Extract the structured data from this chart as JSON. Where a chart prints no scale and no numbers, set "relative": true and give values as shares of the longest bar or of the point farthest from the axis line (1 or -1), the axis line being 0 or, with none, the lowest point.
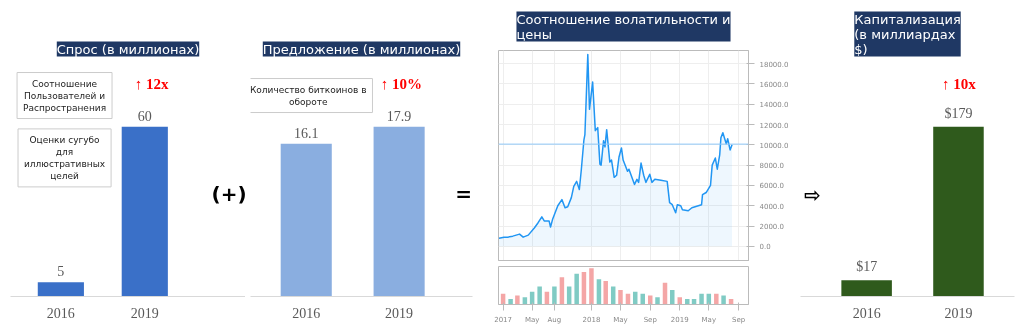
{
  "chart_data": [
    {
      "type": "bar",
      "title": "Спрос (в миллионах)",
      "categories": [
        "2016",
        "2019"
      ],
      "values": [
        5,
        60
      ],
      "color": "#3a70c8",
      "data_labels": true,
      "annotations": [
        "Соотношение Пользователей и Распространения",
        "↑ 12x",
        "Оценки сугубо для иллюстративных целей",
        "(+)"
      ]
    },
    {
      "type": "bar",
      "title": "Предложение (в миллионах)",
      "categories": [
        "2016",
        "2019"
      ],
      "values": [
        16.1,
        17.9
      ],
      "color": "#8aaee0",
      "data_labels": true,
      "annotations": [
        "Количество биткоинов в обороте",
        "↑ 10%",
        "="
      ]
    },
    {
      "type": "area",
      "title": "Соотношение волатильности и цены",
      "grid": true,
      "tick_labels": "y",
      "color": "#2196f3",
      "xlim": [
        "2016-12-13",
        "2019-10-12"
      ],
      "ylim": [
        -1400,
        19300
      ],
      "xticks": [
        {
          "value": "2017-01-01",
          "label": "2017"
        },
        {
          "value": "2017-05-01",
          "label": "May"
        },
        {
          "value": "2017-08-01",
          "label": "Aug"
        },
        {
          "value": "2018-01-01",
          "label": "2018"
        },
        {
          "value": "2018-05-01",
          "label": "May"
        },
        {
          "value": "2018-09-01",
          "label": "Sep"
        },
        {
          "value": "2019-01-01",
          "label": "2019"
        },
        {
          "value": "2019-05-01",
          "label": "May"
        },
        {
          "value": "2019-09-01",
          "label": "Sep"
        }
      ],
      "yticks": [
        {
          "value": 0,
          "label": "0.0"
        },
        {
          "value": 2000,
          "label": "2000.0"
        },
        {
          "value": 4000,
          "label": "4000.0"
        },
        {
          "value": 6000,
          "label": "6000.0"
        },
        {
          "value": 8000,
          "label": "8000.0"
        },
        {
          "value": 10000,
          "label": "10000.0"
        },
        {
          "value": 12000,
          "label": "12000.0"
        },
        {
          "value": 14000,
          "label": "14000.0"
        },
        {
          "value": 16000,
          "label": "16000.0"
        },
        {
          "value": 18000,
          "label": "18000.0"
        }
      ],
      "ref_lines": [
        {
          "axis": "y",
          "value": 10072,
          "color": "#90caf9"
        }
      ],
      "x": [
        "2016-12-15",
        "2017-01-05",
        "2017-01-20",
        "2017-02-10",
        "2017-03-10",
        "2017-03-25",
        "2017-04-15",
        "2017-05-10",
        "2017-05-25",
        "2017-06-10",
        "2017-06-20",
        "2017-07-10",
        "2017-07-16",
        "2017-07-25",
        "2017-08-15",
        "2017-09-01",
        "2017-09-14",
        "2017-09-25",
        "2017-10-10",
        "2017-10-20",
        "2017-11-01",
        "2017-11-12",
        "2017-11-20",
        "2017-12-01",
        "2017-12-05",
        "2017-12-17",
        "2017-12-24",
        "2018-01-06",
        "2018-01-17",
        "2018-01-27",
        "2018-02-05",
        "2018-02-10",
        "2018-02-20",
        "2018-02-26",
        "2018-03-05",
        "2018-03-18",
        "2018-03-25",
        "2018-04-05",
        "2018-04-15",
        "2018-04-25",
        "2018-05-05",
        "2018-05-12",
        "2018-05-30",
        "2018-06-05",
        "2018-06-28",
        "2018-07-08",
        "2018-07-15",
        "2018-07-25",
        "2018-08-05",
        "2018-08-14",
        "2018-08-30",
        "2018-09-08",
        "2018-09-20",
        "2018-10-15",
        "2018-11-10",
        "2018-11-20",
        "2018-12-01",
        "2018-12-15",
        "2018-12-22",
        "2019-01-05",
        "2019-01-12",
        "2019-02-05",
        "2019-02-20",
        "2019-04-01",
        "2019-04-05",
        "2019-04-20",
        "2019-05-08",
        "2019-05-15",
        "2019-05-28",
        "2019-06-05",
        "2019-06-15",
        "2019-06-20",
        "2019-06-28",
        "2019-07-12",
        "2019-07-18",
        "2019-07-28",
        "2019-08-05"
      ],
      "values": [
        800,
        900,
        900,
        1000,
        1200,
        900,
        1100,
        1800,
        2300,
        2900,
        2500,
        2500,
        1900,
        2700,
        4000,
        4600,
        3800,
        3900,
        4800,
        5900,
        6400,
        5600,
        7500,
        10500,
        11000,
        18900,
        13500,
        16200,
        11400,
        11700,
        8100,
        8000,
        10400,
        9800,
        11500,
        8300,
        8500,
        6800,
        7000,
        8800,
        9700,
        8500,
        7400,
        7600,
        6100,
        6600,
        6300,
        8200,
        7000,
        6300,
        7100,
        6300,
        6600,
        6500,
        6400,
        4300,
        4100,
        3300,
        4100,
        4000,
        3600,
        3500,
        3800,
        4100,
        5100,
        5300,
        6000,
        8000,
        8700,
        7600,
        9000,
        10700,
        11200,
        10100,
        10600,
        9500,
        10000
      ]
    },
    {
      "type": "bar",
      "relative": true,
      "tick_labels": "x",
      "xlim": [
        "2016-12-13",
        "2019-10-12"
      ],
      "xticks": [
        {
          "value": "2017-01-01",
          "label": "2017"
        },
        {
          "value": "2017-05-01",
          "label": "May"
        },
        {
          "value": "2017-08-01",
          "label": "Aug"
        },
        {
          "value": "2018-01-01",
          "label": "2018"
        },
        {
          "value": "2018-05-01",
          "label": "May"
        },
        {
          "value": "2018-09-01",
          "label": "Sep"
        },
        {
          "value": "2019-01-01",
          "label": "2019"
        },
        {
          "value": "2019-05-01",
          "label": "May"
        },
        {
          "value": "2019-09-01",
          "label": "Sep"
        }
      ],
      "x": [
        "2017-01-01",
        "2017-02-01",
        "2017-03-01",
        "2017-04-01",
        "2017-05-01",
        "2017-06-01",
        "2017-07-01",
        "2017-08-01",
        "2017-09-01",
        "2017-10-01",
        "2017-11-01",
        "2017-12-01",
        "2018-01-01",
        "2018-02-01",
        "2018-03-01",
        "2018-04-01",
        "2018-05-01",
        "2018-06-01",
        "2018-07-01",
        "2018-08-01",
        "2018-09-01",
        "2018-10-01",
        "2018-11-01",
        "2018-12-01",
        "2019-01-01",
        "2019-02-01",
        "2019-03-01",
        "2019-04-01",
        "2019-05-01",
        "2019-06-01",
        "2019-07-01",
        "2019-08-01"
      ],
      "values": [
        0.3,
        0.15,
        0.25,
        0.2,
        0.35,
        0.5,
        0.35,
        0.5,
        0.75,
        0.5,
        0.85,
        0.9,
        1.0,
        0.7,
        0.65,
        0.5,
        0.4,
        0.3,
        0.35,
        0.3,
        0.25,
        0.2,
        0.6,
        0.4,
        0.2,
        0.15,
        0.15,
        0.3,
        0.3,
        0.3,
        0.25,
        0.15
      ],
      "colors": [
        "#f4a6a6",
        "#80cbc4",
        "#f4a6a6",
        "#80cbc4",
        "#80cbc4",
        "#80cbc4",
        "#f4a6a6",
        "#80cbc4",
        "#f4a6a6",
        "#80cbc4",
        "#80cbc4",
        "#f4a6a6",
        "#f4a6a6",
        "#80cbc4",
        "#f4a6a6",
        "#80cbc4",
        "#f4a6a6",
        "#f4a6a6",
        "#80cbc4",
        "#80cbc4",
        "#f4a6a6",
        "#80cbc4",
        "#f4a6a6",
        "#80cbc4",
        "#f4a6a6",
        "#80cbc4",
        "#80cbc4",
        "#80cbc4",
        "#80cbc4",
        "#f4a6a6",
        "#80cbc4",
        "#f4a6a6"
      ]
    },
    {
      "type": "bar",
      "title": "Капитализация (в миллиардах $)",
      "categories": [
        "2016",
        "2019"
      ],
      "values": [
        17,
        179
      ],
      "color": "#2f5a1c",
      "value_labels": [
        "$17",
        "$179"
      ],
      "annotations": [
        "⇨",
        "↑ 10x"
      ]
    }
  ]
}
